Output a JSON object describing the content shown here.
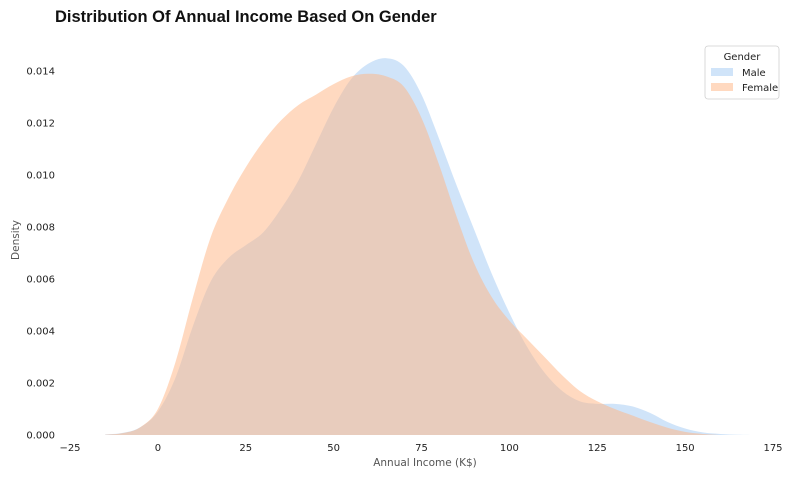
{
  "chart_data": {
    "type": "area",
    "title": "Distribution Of Annual Income Based On Gender",
    "xlabel": "Annual Income (K$)",
    "ylabel": "Density",
    "xlim": [
      -25,
      175
    ],
    "ylim": [
      0,
      0.0152
    ],
    "x_ticks": [
      -25,
      0,
      25,
      50,
      75,
      100,
      125,
      150,
      175
    ],
    "x_tick_labels": [
      "−25",
      "0",
      "25",
      "50",
      "75",
      "100",
      "125",
      "150",
      "175"
    ],
    "y_ticks": [
      0,
      0.002,
      0.004,
      0.006,
      0.008,
      0.01,
      0.012,
      0.014
    ],
    "y_tick_labels": [
      "0.000",
      "0.002",
      "0.004",
      "0.006",
      "0.008",
      "0.010",
      "0.012",
      "0.014"
    ],
    "grid": false,
    "legend": {
      "title": "Gender",
      "placement": "top-right"
    },
    "series": [
      {
        "name": "Male",
        "color": "#a1c9f4",
        "opacity": 0.5,
        "x": [
          -15,
          -10,
          -5,
          0,
          5,
          10,
          15,
          20,
          25,
          30,
          35,
          40,
          45,
          50,
          55,
          60,
          65,
          70,
          75,
          80,
          85,
          90,
          95,
          100,
          105,
          110,
          115,
          120,
          125,
          130,
          135,
          140,
          145,
          150,
          155,
          160,
          165,
          170
        ],
        "values": [
          2e-05,
          8e-05,
          0.0003,
          0.0009,
          0.0022,
          0.0042,
          0.0059,
          0.0068,
          0.0073,
          0.0078,
          0.0087,
          0.0098,
          0.0112,
          0.0126,
          0.0137,
          0.0143,
          0.0145,
          0.0142,
          0.0131,
          0.0114,
          0.0096,
          0.0079,
          0.0062,
          0.0047,
          0.0034,
          0.0024,
          0.0017,
          0.0013,
          0.0012,
          0.0012,
          0.0011,
          0.00085,
          0.0005,
          0.00025,
          0.0001,
          4e-05,
          1e-05,
          0
        ]
      },
      {
        "name": "Female",
        "color": "#ffb482",
        "opacity": 0.5,
        "x": [
          -15,
          -10,
          -5,
          0,
          5,
          10,
          15,
          20,
          25,
          30,
          35,
          40,
          45,
          50,
          55,
          60,
          65,
          70,
          75,
          80,
          85,
          90,
          95,
          100,
          105,
          110,
          115,
          120,
          125,
          130,
          135,
          140,
          145,
          150,
          155,
          160
        ],
        "values": [
          1e-05,
          7e-05,
          0.0003,
          0.001,
          0.0028,
          0.0053,
          0.0076,
          0.0091,
          0.0103,
          0.0113,
          0.0121,
          0.0127,
          0.0131,
          0.0135,
          0.0138,
          0.0139,
          0.0138,
          0.0134,
          0.0122,
          0.0104,
          0.0084,
          0.0066,
          0.0053,
          0.0044,
          0.0037,
          0.003,
          0.0023,
          0.0017,
          0.0013,
          0.001,
          0.00075,
          0.0005,
          0.00028,
          0.00012,
          4e-05,
          0
        ]
      }
    ]
  }
}
